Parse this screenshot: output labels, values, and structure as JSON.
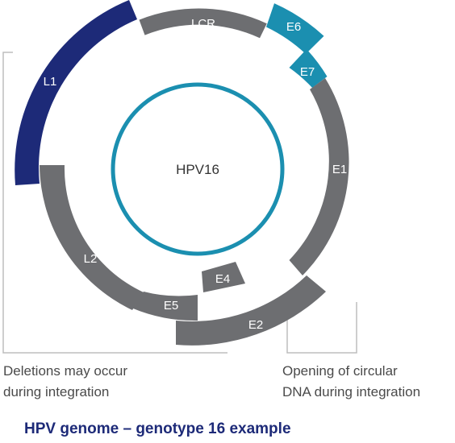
{
  "center_label": "HPV16",
  "segments": [
    {
      "label": "LCR",
      "color": "#6d6e71"
    },
    {
      "label": "E6",
      "color": "#1b8fb0"
    },
    {
      "label": "E7",
      "color": "#1b8fb0"
    },
    {
      "label": "E1",
      "color": "#6d6e71"
    },
    {
      "label": "E2",
      "color": "#6d6e71"
    },
    {
      "label": "E4",
      "color": "#6d6e71"
    },
    {
      "label": "E5",
      "color": "#6d6e71"
    },
    {
      "label": "L2",
      "color": "#6d6e71"
    },
    {
      "label": "L1",
      "color": "#1d2a78"
    }
  ],
  "inner_circle_color": "#1b8fb0",
  "bracket_color": "#bdbdbd",
  "notes": {
    "left": {
      "line1": "Deletions may occur",
      "line2": "during integration"
    },
    "right": {
      "line1": "Opening of circular",
      "line2": "DNA during integration"
    }
  },
  "caption": "HPV genome – genotype 16 example"
}
